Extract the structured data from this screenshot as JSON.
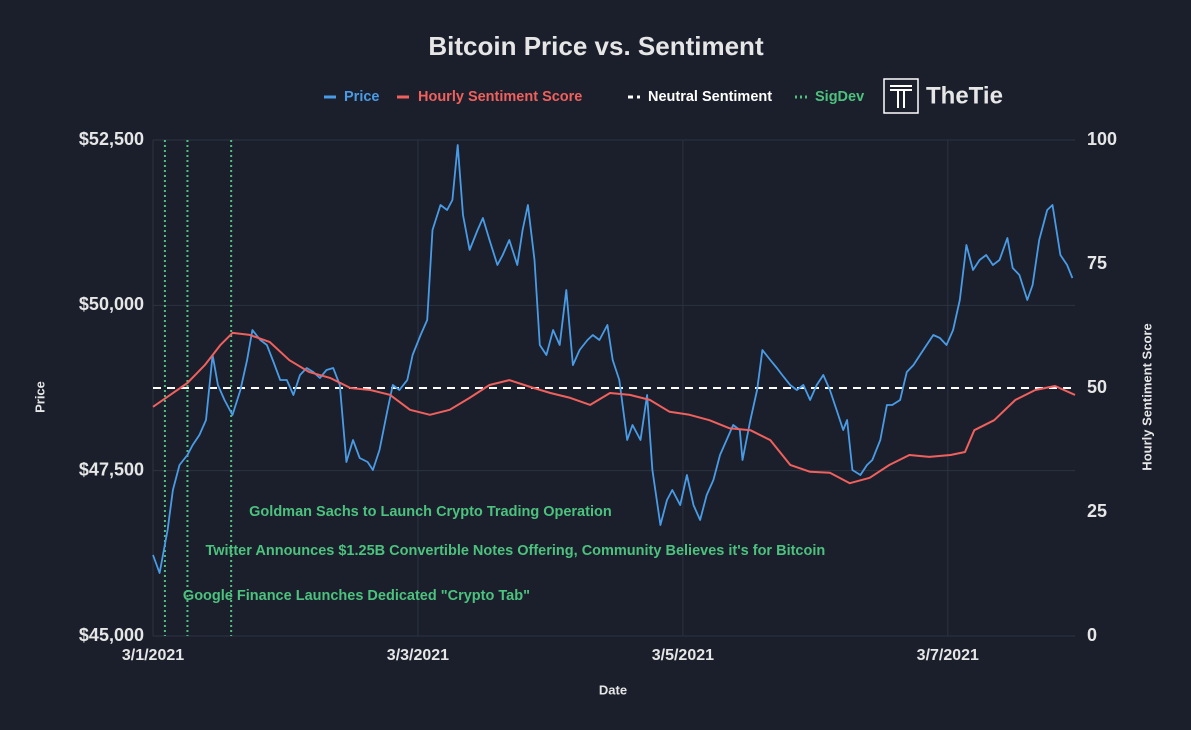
{
  "chart_data": {
    "type": "line",
    "title": "Bitcoin Price vs. Sentiment",
    "logo": "TheTie",
    "xlabel": "Date",
    "ylabel": "Price",
    "y2label": "Hourly Sentiment Score",
    "xlim": [
      0,
      6.96
    ],
    "ylim": [
      45000,
      52500
    ],
    "y2lim": [
      0,
      100
    ],
    "xticks": [
      {
        "value": 0,
        "label": "3/1/2021"
      },
      {
        "value": 2,
        "label": "3/3/2021"
      },
      {
        "value": 4,
        "label": "3/5/2021"
      },
      {
        "value": 6,
        "label": "3/7/2021"
      }
    ],
    "yticks": [
      {
        "value": 45000,
        "label": "$45,000"
      },
      {
        "value": 47500,
        "label": "$47,500"
      },
      {
        "value": 50000,
        "label": "$50,000"
      },
      {
        "value": 52500,
        "label": "$52,500"
      }
    ],
    "y2ticks": [
      0,
      25,
      50,
      75,
      100
    ],
    "grid": true,
    "x": [
      0,
      0.05,
      0.11,
      0.15,
      0.2,
      0.26,
      0.3,
      0.35,
      0.4,
      0.45,
      0.49,
      0.54,
      0.6,
      0.66,
      0.71,
      0.75,
      0.81,
      0.86,
      0.91,
      0.96,
      1.01,
      1.06,
      1.11,
      1.16,
      1.21,
      1.26,
      1.31,
      1.36,
      1.41,
      1.46,
      1.51,
      1.56,
      1.62,
      1.66,
      1.71,
      1.77,
      1.81,
      1.86,
      1.92,
      1.96,
      2.02,
      2.07,
      2.11,
      2.17,
      2.22,
      2.26,
      2.3,
      2.34,
      2.39,
      2.45,
      2.49,
      2.54,
      2.6,
      2.64,
      2.69,
      2.75,
      2.79,
      2.83,
      2.88,
      2.92,
      2.97,
      3.02,
      3.07,
      3.12,
      3.17,
      3.22,
      3.28,
      3.32,
      3.37,
      3.43,
      3.47,
      3.52,
      3.58,
      3.62,
      3.68,
      3.73,
      3.77,
      3.83,
      3.88,
      3.92,
      3.98,
      4.03,
      4.08,
      4.13,
      4.18,
      4.23,
      4.28,
      4.33,
      4.38,
      4.43,
      4.45,
      4.51,
      4.56,
      4.6,
      4.66,
      4.71,
      4.75,
      4.81,
      4.86,
      4.91,
      4.96,
      5.01,
      5.06,
      5.11,
      5.16,
      5.21,
      5.24,
      5.28,
      5.34,
      5.39,
      5.43,
      5.49,
      5.54,
      5.58,
      5.64,
      5.69,
      5.74,
      5.79,
      5.84,
      5.89,
      5.94,
      5.99,
      6.04,
      6.09,
      6.14,
      6.19,
      6.24,
      6.29,
      6.34,
      6.39,
      6.45,
      6.49,
      6.54,
      6.6,
      6.64,
      6.69,
      6.75,
      6.79,
      6.85,
      6.9,
      6.94
    ],
    "series": [
      {
        "name": "Price",
        "color": "#4a9be6",
        "axis": "y",
        "values": [
          46225,
          45953,
          46603,
          47208,
          47586,
          47737,
          47888,
          48039,
          48266,
          49249,
          48795,
          48568,
          48342,
          48720,
          49173,
          49627,
          49476,
          49400,
          49143,
          48871,
          48871,
          48644,
          48946,
          49052,
          48992,
          48901,
          49022,
          49052,
          48795,
          47631,
          47964,
          47692,
          47631,
          47510,
          47812,
          48417,
          48795,
          48720,
          48871,
          49249,
          49551,
          49778,
          51139,
          51517,
          51441,
          51592,
          52424,
          51366,
          50837,
          51139,
          51320,
          50988,
          50610,
          50761,
          50988,
          50610,
          51139,
          51517,
          50686,
          49400,
          49249,
          49627,
          49400,
          50232,
          49097,
          49325,
          49476,
          49551,
          49476,
          49703,
          49173,
          48871,
          47964,
          48190,
          47964,
          48644,
          47510,
          46678,
          47056,
          47208,
          46980,
          47434,
          46980,
          46754,
          47132,
          47359,
          47737,
          47964,
          48190,
          48115,
          47661,
          48266,
          48720,
          49325,
          49173,
          49052,
          48946,
          48795,
          48720,
          48795,
          48568,
          48795,
          48946,
          48720,
          48417,
          48115,
          48266,
          47510,
          47434,
          47586,
          47661,
          47964,
          48493,
          48493,
          48568,
          48992,
          49097,
          49249,
          49400,
          49551,
          49506,
          49400,
          49627,
          50081,
          50913,
          50535,
          50686,
          50761,
          50610,
          50686,
          51018,
          50565,
          50459,
          50081,
          50308,
          50988,
          51441,
          51517,
          50761,
          50610,
          50414
        ]
      },
      {
        "name": "Hourly Sentiment Score",
        "color": "#f0605d",
        "axis": "y2",
        "x": [
          0,
          0.13,
          0.26,
          0.39,
          0.51,
          0.6,
          0.73,
          0.88,
          1.03,
          1.18,
          1.34,
          1.49,
          1.64,
          1.79,
          1.94,
          2.09,
          2.24,
          2.39,
          2.54,
          2.69,
          2.85,
          3.0,
          3.15,
          3.3,
          3.45,
          3.6,
          3.75,
          3.9,
          4.05,
          4.2,
          4.35,
          4.51,
          4.66,
          4.81,
          4.96,
          5.11,
          5.26,
          5.41,
          5.56,
          5.71,
          5.86,
          6.02,
          6.13,
          6.2,
          6.35,
          6.51,
          6.66,
          6.81,
          6.96
        ],
        "values": [
          46.2,
          48.6,
          51,
          54.6,
          58.7,
          61.1,
          60.7,
          59.3,
          55.6,
          53.2,
          52,
          50,
          49.6,
          48.6,
          45.6,
          44.6,
          45.6,
          48,
          50.6,
          51.6,
          50.2,
          49,
          48,
          46.6,
          49,
          48.6,
          47.6,
          45.2,
          44.6,
          43.5,
          41.9,
          41.5,
          39.5,
          34.5,
          33.1,
          32.9,
          30.8,
          31.9,
          34.5,
          36.5,
          36.1,
          36.5,
          37.1,
          41.5,
          43.5,
          47.6,
          49.6,
          50.4,
          48.6
        ]
      }
    ],
    "reference_line": {
      "name": "Neutral Sentiment",
      "value": 50,
      "axis": "y2",
      "color": "#ffffff"
    },
    "events": {
      "name": "SigDev",
      "color": "#4cc27e",
      "items": [
        {
          "x": 0.09,
          "label": "Google Finance Launches Dedicated \"Crypto Tab\""
        },
        {
          "x": 0.26,
          "label": "Twitter Announces $1.25B Convertible Notes Offering, Community Believes it's for Bitcoin"
        },
        {
          "x": 0.59,
          "label": "Goldman Sachs to Launch Crypto Trading Operation"
        }
      ]
    }
  }
}
